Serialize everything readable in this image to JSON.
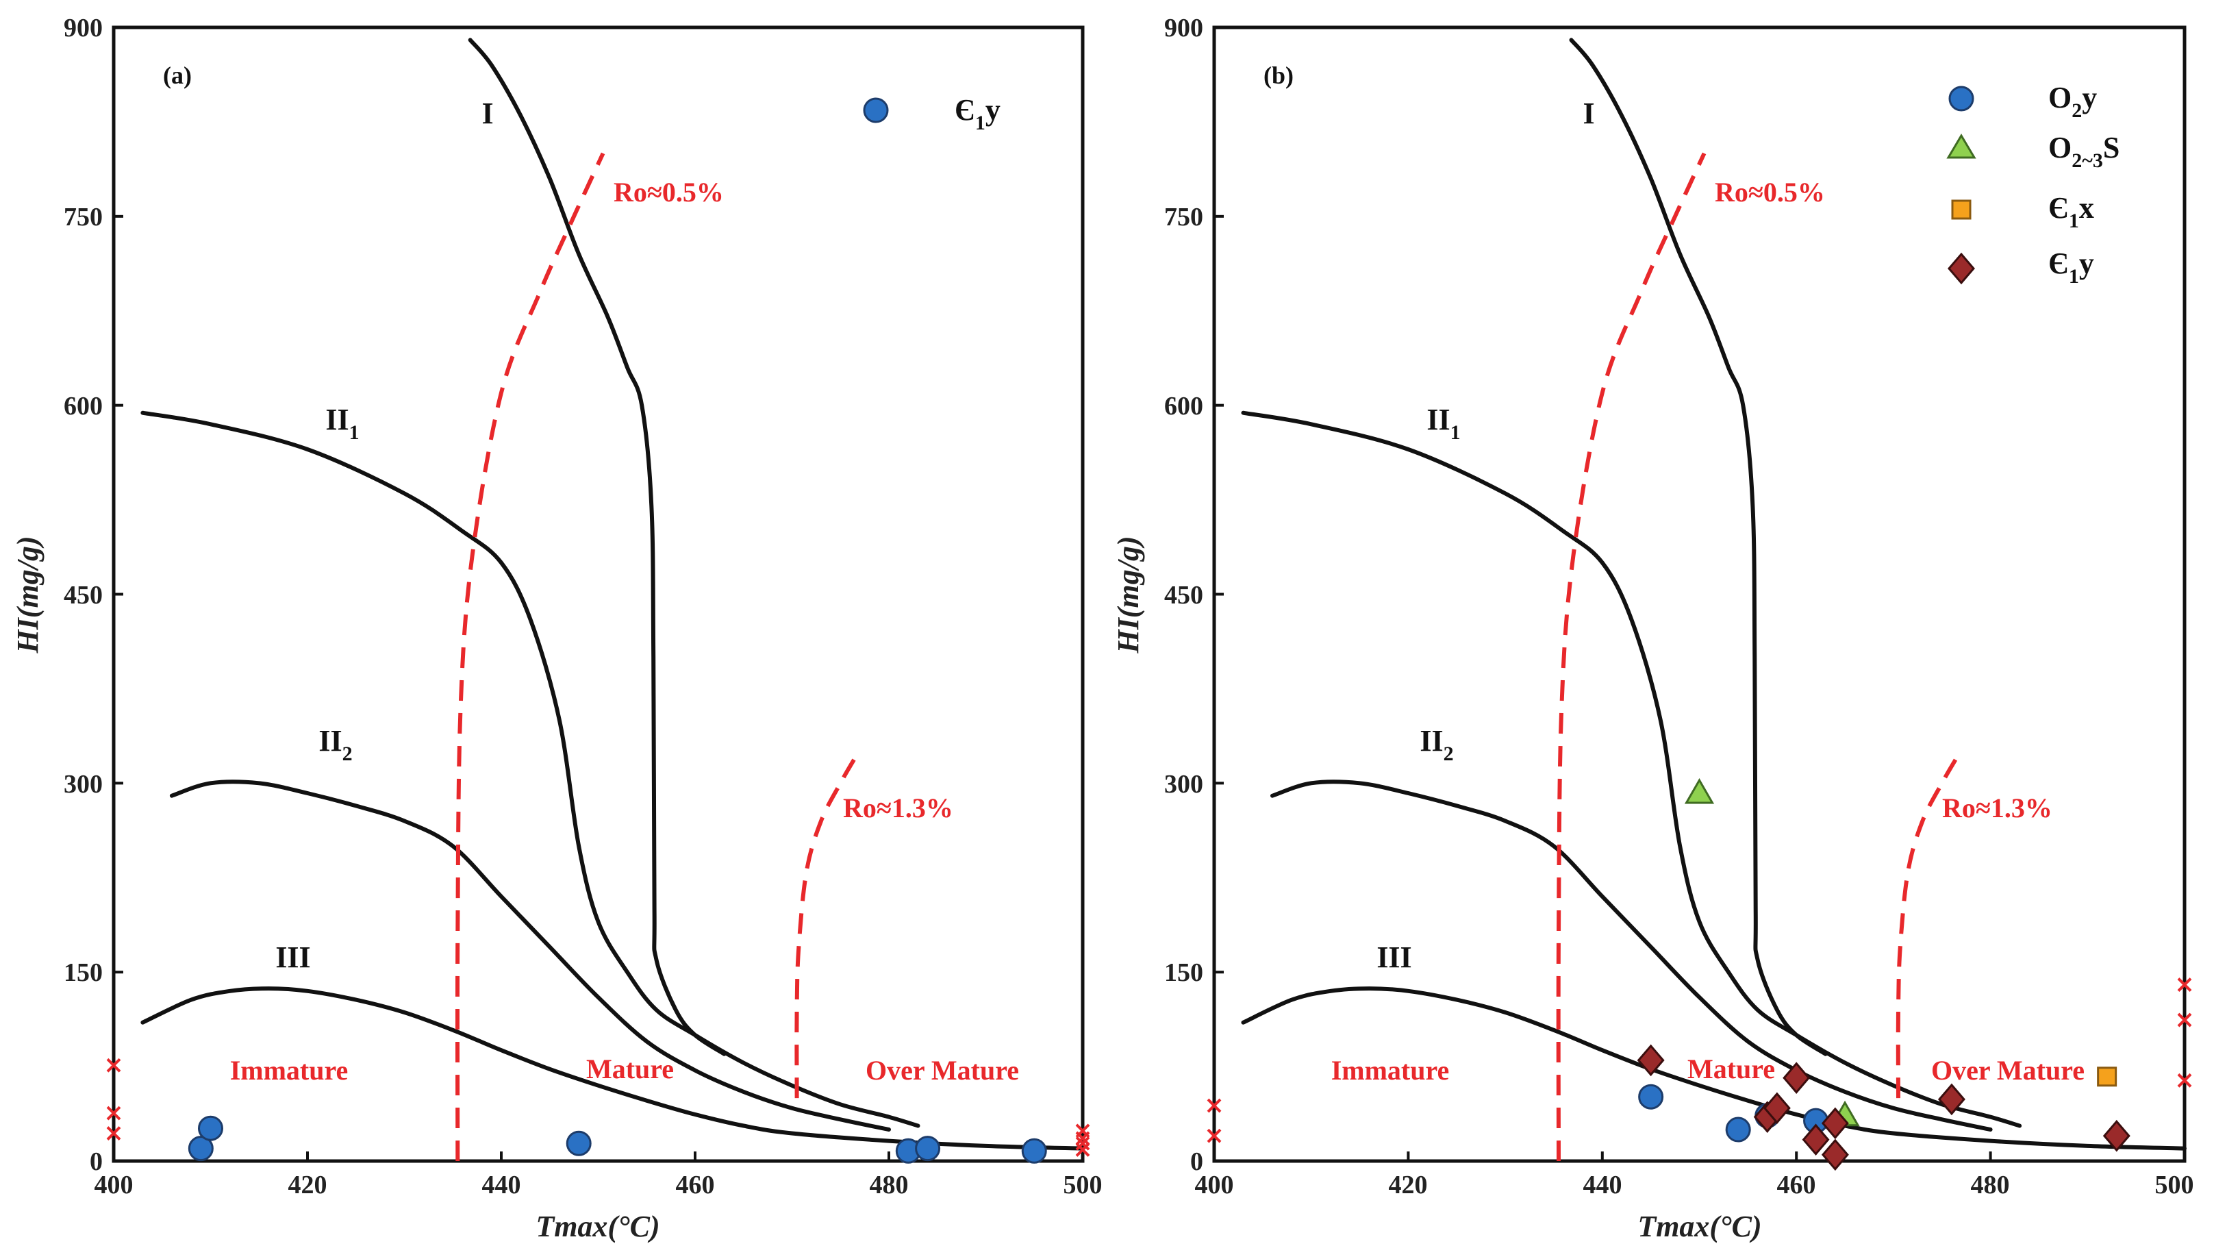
{
  "figure": {
    "xlabel": "Tmax(°C)",
    "ylabel": "HI(mg/g)",
    "xticks": [
      "400",
      "420",
      "440",
      "460",
      "480",
      "500"
    ],
    "yticks": [
      "0",
      "150",
      "300",
      "450",
      "600",
      "750",
      "900"
    ]
  },
  "chart_data": [
    {
      "type": "scatter",
      "panel": "(a)",
      "xlabel": "Tmax(°C)",
      "ylabel": "HI(mg/g)",
      "xlim": [
        400,
        500
      ],
      "ylim": [
        0,
        900
      ],
      "kerogen_curves": [
        {
          "name": "I",
          "points": [
            [
              436.8,
              890
            ],
            [
              439,
              870
            ],
            [
              442,
              830
            ],
            [
              445,
              780
            ],
            [
              448,
              720
            ],
            [
              451,
              670
            ],
            [
              453,
              630
            ],
            [
              454.5,
              600
            ],
            [
              455.5,
              520
            ],
            [
              455.7,
              400
            ],
            [
              455.8,
              200
            ],
            [
              456,
              160
            ],
            [
              458,
              120
            ],
            [
              460,
              100
            ],
            [
              463,
              85
            ]
          ]
        },
        {
          "name": "II1",
          "points": [
            [
              403,
              594
            ],
            [
              410,
              585
            ],
            [
              420,
              565
            ],
            [
              430,
              530
            ],
            [
              436,
              500
            ],
            [
              440,
              475
            ],
            [
              443,
              430
            ],
            [
              446,
              350
            ],
            [
              448,
              250
            ],
            [
              450,
              190
            ],
            [
              453,
              150
            ],
            [
              456,
              120
            ],
            [
              460,
              100
            ],
            [
              465,
              78
            ],
            [
              470,
              60
            ],
            [
              475,
              45
            ],
            [
              480,
              35
            ],
            [
              483,
              28
            ]
          ]
        },
        {
          "name": "II2",
          "points": [
            [
              406,
              290
            ],
            [
              410,
              300
            ],
            [
              415,
              300
            ],
            [
              420,
              292
            ],
            [
              425,
              282
            ],
            [
              430,
              270
            ],
            [
              435,
              250
            ],
            [
              440,
              210
            ],
            [
              445,
              170
            ],
            [
              450,
              130
            ],
            [
              455,
              95
            ],
            [
              460,
              72
            ],
            [
              465,
              55
            ],
            [
              470,
              42
            ],
            [
              475,
              33
            ],
            [
              480,
              25
            ]
          ]
        },
        {
          "name": "III",
          "points": [
            [
              403,
              110
            ],
            [
              408,
              128
            ],
            [
              412,
              135
            ],
            [
              416,
              137
            ],
            [
              420,
              135
            ],
            [
              425,
              128
            ],
            [
              430,
              118
            ],
            [
              435,
              104
            ],
            [
              440,
              88
            ],
            [
              445,
              73
            ],
            [
              450,
              60
            ],
            [
              455,
              48
            ],
            [
              460,
              37
            ],
            [
              465,
              28
            ],
            [
              470,
              22
            ],
            [
              480,
              16
            ],
            [
              490,
              12
            ],
            [
              500,
              10
            ]
          ]
        }
      ],
      "iso_ro_lines": [
        {
          "label": "Ro≈0.5%",
          "points": [
            [
              435.5,
              0
            ],
            [
              435.5,
              180
            ],
            [
              435.8,
              360
            ],
            [
              437,
              480
            ],
            [
              440,
              610
            ],
            [
              444,
              690
            ],
            [
              447.5,
              750
            ],
            [
              450.5,
              800
            ]
          ]
        },
        {
          "label": "Ro≈1.3%",
          "points": [
            [
              470.5,
              50
            ],
            [
              470.5,
              120
            ],
            [
              470.7,
              170
            ],
            [
              471.5,
              230
            ],
            [
              473,
              270
            ],
            [
              475,
              300
            ],
            [
              476.5,
              320
            ]
          ]
        }
      ],
      "zones": [
        "Immature",
        "Mature",
        "Over Mature"
      ],
      "series": [
        {
          "name": "Є1y",
          "marker": "circle",
          "color": "#2a71c4",
          "x": [
            409,
            410,
            448,
            482,
            484,
            495
          ],
          "y": [
            10,
            26,
            14,
            8,
            10,
            8
          ]
        }
      ],
      "edge_points": [
        {
          "x": 400,
          "y": [
            76,
            38,
            22
          ]
        },
        {
          "x": 500,
          "y": [
            24,
            18,
            14,
            9
          ]
        }
      ]
    },
    {
      "type": "scatter",
      "panel": "(b)",
      "xlabel": "Tmax(°C)",
      "ylabel": "HI(mg/g)",
      "xlim": [
        400,
        500
      ],
      "ylim": [
        0,
        900
      ],
      "kerogen_curves": [
        {
          "name": "I",
          "points": [
            [
              436.8,
              890
            ],
            [
              439,
              870
            ],
            [
              442,
              830
            ],
            [
              445,
              780
            ],
            [
              448,
              720
            ],
            [
              451,
              670
            ],
            [
              453,
              630
            ],
            [
              454.5,
              600
            ],
            [
              455.5,
              520
            ],
            [
              455.7,
              400
            ],
            [
              455.8,
              200
            ],
            [
              456,
              160
            ],
            [
              458,
              120
            ],
            [
              460,
              100
            ],
            [
              463,
              85
            ]
          ]
        },
        {
          "name": "II1",
          "points": [
            [
              403,
              594
            ],
            [
              410,
              585
            ],
            [
              420,
              565
            ],
            [
              430,
              530
            ],
            [
              436,
              500
            ],
            [
              440,
              475
            ],
            [
              443,
              430
            ],
            [
              446,
              350
            ],
            [
              448,
              250
            ],
            [
              450,
              190
            ],
            [
              453,
              150
            ],
            [
              456,
              120
            ],
            [
              460,
              100
            ],
            [
              465,
              78
            ],
            [
              470,
              60
            ],
            [
              475,
              45
            ],
            [
              480,
              35
            ],
            [
              483,
              28
            ]
          ]
        },
        {
          "name": "II2",
          "points": [
            [
              406,
              290
            ],
            [
              410,
              300
            ],
            [
              415,
              300
            ],
            [
              420,
              292
            ],
            [
              425,
              282
            ],
            [
              430,
              270
            ],
            [
              435,
              250
            ],
            [
              440,
              210
            ],
            [
              445,
              170
            ],
            [
              450,
              130
            ],
            [
              455,
              95
            ],
            [
              460,
              72
            ],
            [
              465,
              55
            ],
            [
              470,
              42
            ],
            [
              475,
              33
            ],
            [
              480,
              25
            ]
          ]
        },
        {
          "name": "III",
          "points": [
            [
              403,
              110
            ],
            [
              408,
              128
            ],
            [
              412,
              135
            ],
            [
              416,
              137
            ],
            [
              420,
              135
            ],
            [
              425,
              128
            ],
            [
              430,
              118
            ],
            [
              435,
              104
            ],
            [
              440,
              88
            ],
            [
              445,
              73
            ],
            [
              450,
              60
            ],
            [
              455,
              48
            ],
            [
              460,
              37
            ],
            [
              465,
              28
            ],
            [
              470,
              22
            ],
            [
              480,
              16
            ],
            [
              490,
              12
            ],
            [
              500,
              10
            ]
          ]
        }
      ],
      "iso_ro_lines": [
        {
          "label": "Ro≈0.5%",
          "points": [
            [
              435.5,
              0
            ],
            [
              435.5,
              180
            ],
            [
              435.8,
              360
            ],
            [
              437,
              480
            ],
            [
              440,
              610
            ],
            [
              444,
              690
            ],
            [
              447.5,
              750
            ],
            [
              450.5,
              800
            ]
          ]
        },
        {
          "label": "Ro≈1.3%",
          "points": [
            [
              470.5,
              50
            ],
            [
              470.5,
              120
            ],
            [
              470.7,
              170
            ],
            [
              471.5,
              230
            ],
            [
              473,
              270
            ],
            [
              475,
              300
            ],
            [
              476.5,
              320
            ]
          ]
        }
      ],
      "zones": [
        "Immature",
        "Mature",
        "Over Mature"
      ],
      "series": [
        {
          "name": "O2y",
          "marker": "circle",
          "color": "#2a71c4",
          "x": [
            445,
            454,
            457,
            462
          ],
          "y": [
            51,
            25,
            36,
            32
          ]
        },
        {
          "name": "O2~3S",
          "marker": "triangle",
          "color": "#8fd14f",
          "x": [
            450,
            465
          ],
          "y": [
            292,
            36
          ]
        },
        {
          "name": "Є1x",
          "marker": "square",
          "color": "#f5a11c",
          "x": [
            492
          ],
          "y": [
            67
          ]
        },
        {
          "name": "Є1y",
          "marker": "diamond",
          "color": "#9a2a2a",
          "x": [
            445,
            457,
            458,
            460,
            462,
            464,
            464,
            476,
            493
          ],
          "y": [
            80,
            35,
            42,
            66,
            17,
            30,
            5,
            49,
            20
          ]
        }
      ],
      "edge_points": [
        {
          "x": 400,
          "y": [
            44,
            20
          ]
        },
        {
          "x": 500,
          "y": [
            140,
            112,
            64
          ]
        }
      ]
    }
  ],
  "panels": [
    {
      "label": "(a)",
      "kerogen_labels": {
        "I": "I",
        "II1_base": "II",
        "II1_sub": "1",
        "II2_base": "II",
        "II2_sub": "2",
        "III": "III"
      },
      "ro_labels": {
        "ro05": "Ro≈0.5%",
        "ro13": "Ro≈1.3%"
      },
      "zones": {
        "immature": "Immature",
        "mature": "Mature",
        "over_mature": "Over Mature"
      },
      "legend": {
        "e1y_base": "Є",
        "e1y_sub": "1",
        "e1y_tail": "y"
      }
    },
    {
      "label": "(b)",
      "kerogen_labels": {
        "I": "I",
        "II1_base": "II",
        "II1_sub": "1",
        "II2_base": "II",
        "II2_sub": "2",
        "III": "III"
      },
      "ro_labels": {
        "ro05": "Ro≈0.5%",
        "ro13": "Ro≈1.3%"
      },
      "zones": {
        "immature": "Immature",
        "mature": "Mature",
        "over_mature": "Over Mature"
      },
      "legend": {
        "o2y_base": "O",
        "o2y_sub": "2",
        "o2y_tail": "y",
        "o23s_base": "O",
        "o23s_sub": "2~3",
        "o23s_tail": "S",
        "e1x_base": "Є",
        "e1x_sub": "1",
        "e1x_tail": "x",
        "e1y_base": "Є",
        "e1y_sub": "1",
        "e1y_tail": "y"
      }
    }
  ]
}
